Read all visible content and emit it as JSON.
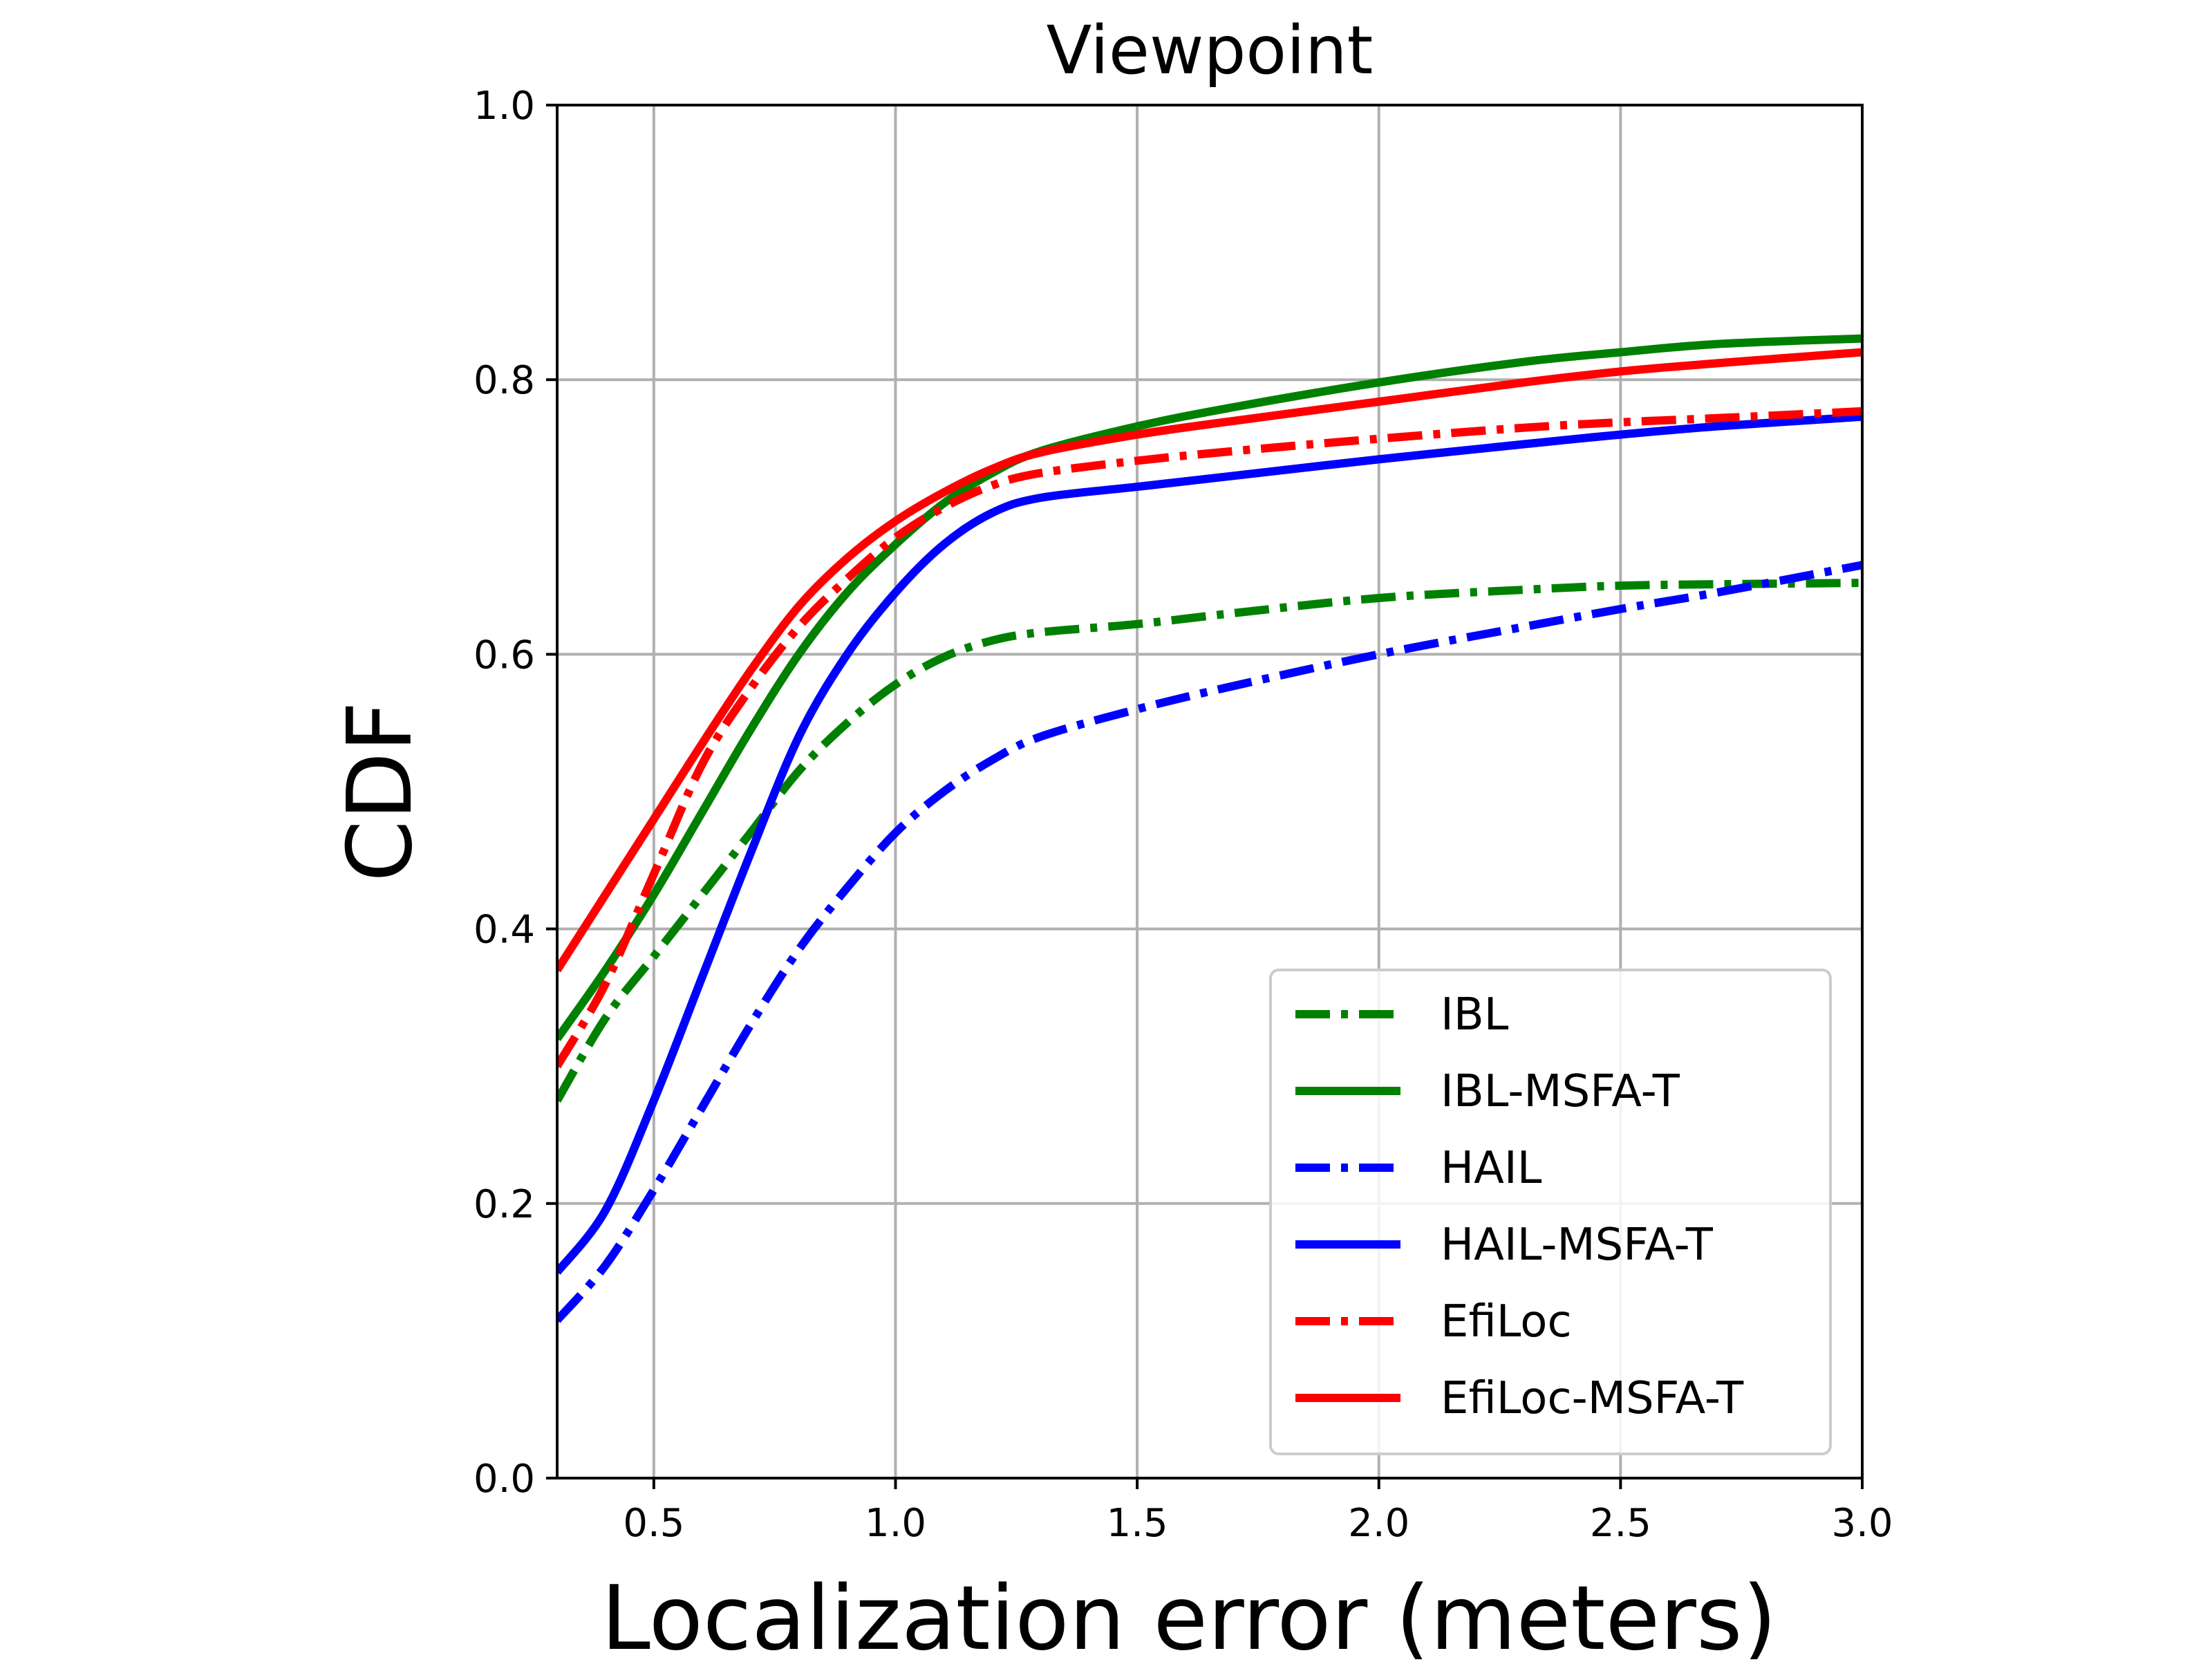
{
  "chart_data": {
    "type": "line",
    "title": "Viewpoint",
    "xlabel": "Localization error (meters)",
    "ylabel": "CDF",
    "xlim": [
      0.3,
      3.0
    ],
    "ylim": [
      0.0,
      1.0
    ],
    "grid": true,
    "legend_position": "lower-right",
    "x_ticks": [
      0.5,
      1.0,
      1.5,
      2.0,
      2.5,
      3.0
    ],
    "x_tick_labels": [
      "0.5",
      "1.0",
      "1.5",
      "2.0",
      "2.5",
      "3.0"
    ],
    "y_ticks": [
      0.0,
      0.2,
      0.4,
      0.6,
      0.8,
      1.0
    ],
    "y_tick_labels": [
      "0.0",
      "0.2",
      "0.4",
      "0.6",
      "0.8",
      "1.0"
    ],
    "series": [
      {
        "name": "IBL",
        "color": "#008000",
        "style": "dashdot",
        "x": [
          0.3,
          0.4,
          0.5,
          0.6,
          0.7,
          0.8,
          0.9,
          1.0,
          1.1,
          1.2,
          1.3,
          1.5,
          1.7,
          2.0,
          2.3,
          2.5,
          2.7,
          3.0
        ],
        "y": [
          0.275,
          0.335,
          0.38,
          0.425,
          0.47,
          0.515,
          0.55,
          0.578,
          0.598,
          0.61,
          0.616,
          0.622,
          0.63,
          0.641,
          0.647,
          0.65,
          0.651,
          0.652
        ]
      },
      {
        "name": "IBL-MSFA-T",
        "color": "#008000",
        "style": "solid",
        "x": [
          0.3,
          0.4,
          0.5,
          0.6,
          0.7,
          0.8,
          0.9,
          1.0,
          1.1,
          1.2,
          1.3,
          1.5,
          1.7,
          2.0,
          2.3,
          2.5,
          2.7,
          3.0
        ],
        "y": [
          0.32,
          0.37,
          0.425,
          0.485,
          0.545,
          0.6,
          0.645,
          0.68,
          0.71,
          0.732,
          0.748,
          0.766,
          0.78,
          0.798,
          0.813,
          0.82,
          0.826,
          0.83
        ]
      },
      {
        "name": "HAIL",
        "color": "#0000ff",
        "style": "dashdot",
        "x": [
          0.3,
          0.4,
          0.5,
          0.6,
          0.7,
          0.8,
          0.9,
          1.0,
          1.1,
          1.2,
          1.3,
          1.5,
          1.7,
          2.0,
          2.3,
          2.5,
          2.7,
          3.0
        ],
        "y": [
          0.115,
          0.155,
          0.21,
          0.27,
          0.33,
          0.385,
          0.43,
          0.47,
          0.5,
          0.523,
          0.54,
          0.56,
          0.577,
          0.6,
          0.62,
          0.633,
          0.645,
          0.665
        ]
      },
      {
        "name": "HAIL-MSFA-T",
        "color": "#0000ff",
        "style": "solid",
        "x": [
          0.3,
          0.4,
          0.5,
          0.6,
          0.7,
          0.8,
          0.9,
          1.0,
          1.1,
          1.2,
          1.3,
          1.5,
          1.7,
          2.0,
          2.3,
          2.5,
          2.7,
          3.0
        ],
        "y": [
          0.15,
          0.195,
          0.275,
          0.365,
          0.455,
          0.54,
          0.6,
          0.645,
          0.68,
          0.703,
          0.714,
          0.722,
          0.73,
          0.742,
          0.753,
          0.76,
          0.766,
          0.773
        ]
      },
      {
        "name": "EfiLoc",
        "color": "#ff0000",
        "style": "dashdot",
        "x": [
          0.3,
          0.4,
          0.5,
          0.6,
          0.7,
          0.8,
          0.9,
          1.0,
          1.1,
          1.2,
          1.3,
          1.5,
          1.7,
          2.0,
          2.3,
          2.5,
          2.7,
          3.0
        ],
        "y": [
          0.3,
          0.36,
          0.44,
          0.52,
          0.575,
          0.62,
          0.655,
          0.685,
          0.707,
          0.723,
          0.732,
          0.741,
          0.748,
          0.757,
          0.765,
          0.769,
          0.772,
          0.777
        ]
      },
      {
        "name": "EfiLoc-MSFA-T",
        "color": "#ff0000",
        "style": "solid",
        "x": [
          0.3,
          0.4,
          0.5,
          0.6,
          0.7,
          0.8,
          0.9,
          1.0,
          1.1,
          1.2,
          1.3,
          1.5,
          1.7,
          2.0,
          2.3,
          2.5,
          2.7,
          3.0
        ],
        "y": [
          0.37,
          0.425,
          0.48,
          0.535,
          0.588,
          0.635,
          0.67,
          0.697,
          0.718,
          0.735,
          0.747,
          0.76,
          0.77,
          0.784,
          0.798,
          0.806,
          0.812,
          0.82
        ]
      }
    ]
  }
}
